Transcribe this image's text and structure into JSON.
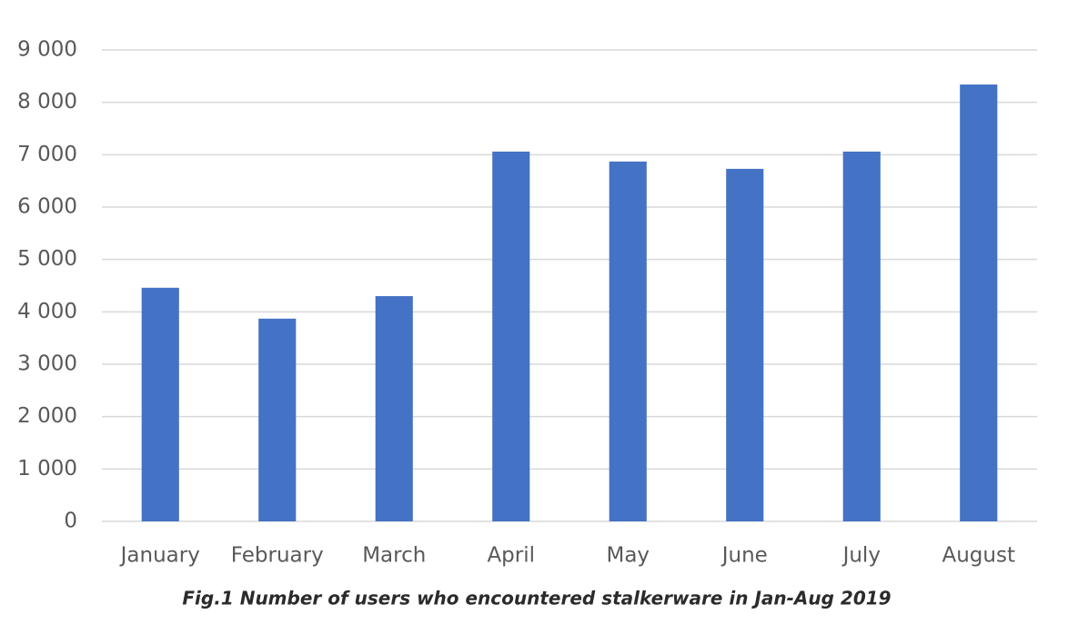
{
  "chart_data": {
    "type": "bar",
    "caption": "Fig.1 Number of users who encountered stalkerware in Jan-Aug 2019",
    "categories": [
      "January",
      "February",
      "March",
      "April",
      "May",
      "June",
      "July",
      "August"
    ],
    "values": [
      4460,
      3870,
      4300,
      7060,
      6870,
      6730,
      7060,
      8340
    ],
    "color": "#4472c4",
    "ylim": [
      0,
      9000
    ],
    "yticks": [
      0,
      {
        "value": 1000,
        "label": "1 000"
      },
      {
        "value": 2000,
        "label": "2 000"
      },
      {
        "value": 3000,
        "label": "3 000"
      },
      {
        "value": 4000,
        "label": "4 000"
      },
      {
        "value": 5000,
        "label": "5 000"
      },
      {
        "value": 6000,
        "label": "6 000"
      },
      {
        "value": 7000,
        "label": "7 000"
      },
      {
        "value": 8000,
        "label": "8 000"
      },
      {
        "value": 9000,
        "label": "9 000"
      }
    ],
    "grid": true
  }
}
